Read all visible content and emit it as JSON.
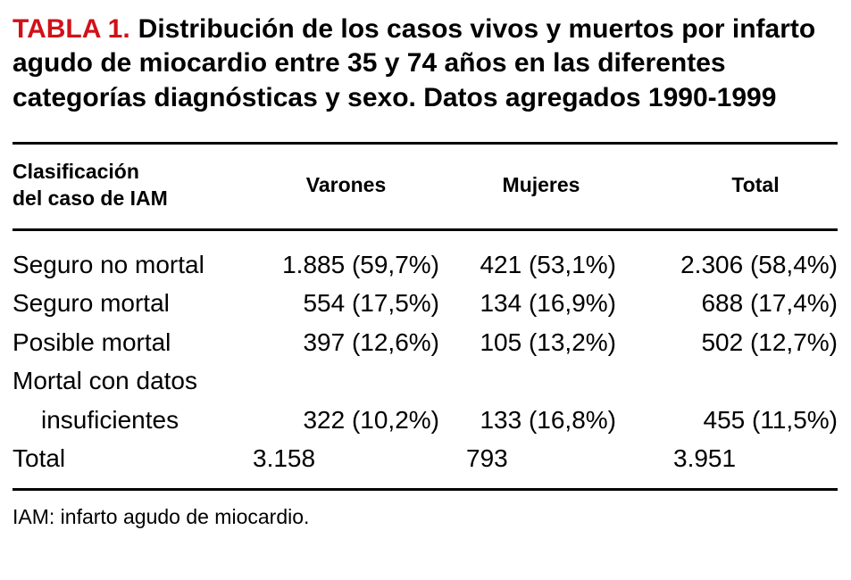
{
  "title": {
    "label": "TABLA 1.",
    "text": "Distribución de los casos vivos y muertos por infarto agudo de miocardio entre 35 y 74 años en las diferentes categorías diagnósticas y sexo. Datos agregados 1990-1999"
  },
  "table": {
    "header": {
      "col1_line1": "Clasificación",
      "col1_line2": "del caso de IAM",
      "col2": "Varones",
      "col3": "Mujeres",
      "col4": "Total"
    },
    "rows": [
      {
        "label": "Seguro no mortal",
        "varones": "1.885 (59,7%)",
        "mujeres": "421 (53,1%)",
        "total": "2.306 (58,4%)"
      },
      {
        "label": "Seguro mortal",
        "varones": "554 (17,5%)",
        "mujeres": "134 (16,9%)",
        "total": "688 (17,4%)"
      },
      {
        "label": "Posible mortal",
        "varones": "397 (12,6%)",
        "mujeres": "105 (13,2%)",
        "total": "502 (12,7%)"
      },
      {
        "label_line1": "Mortal con datos",
        "label_line2": "insuficientes",
        "varones": "322 (10,2%)",
        "mujeres": "133 (16,8%)",
        "total": "455 (11,5%)"
      },
      {
        "label": "Total",
        "varones": "3.158",
        "mujeres": "793",
        "total": "3.951"
      }
    ]
  },
  "footnote": "IAM: infarto agudo de miocardio.",
  "colors": {
    "accent": "#d01119",
    "text": "#000000",
    "background": "#ffffff",
    "rule": "#000000"
  },
  "chart_data": {
    "type": "table",
    "title": "TABLA 1. Distribución de los casos vivos y muertos por infarto agudo de miocardio entre 35 y 74 años en las diferentes categorías diagnósticas y sexo. Datos agregados 1990-1999",
    "columns": [
      "Clasificación del caso de IAM",
      "Varones",
      "Mujeres",
      "Total"
    ],
    "rows": [
      [
        "Seguro no mortal",
        "1.885 (59,7%)",
        "421 (53,1%)",
        "2.306 (58,4%)"
      ],
      [
        "Seguro mortal",
        "554 (17,5%)",
        "134 (16,9%)",
        "688 (17,4%)"
      ],
      [
        "Posible mortal",
        "397 (12,6%)",
        "105 (13,2%)",
        "502 (12,7%)"
      ],
      [
        "Mortal con datos insuficientes",
        "322 (10,2%)",
        "133 (16,8%)",
        "455 (11,5%)"
      ],
      [
        "Total",
        "3.158",
        "793",
        "3.951"
      ]
    ],
    "footnote": "IAM: infarto agudo de miocardio."
  }
}
